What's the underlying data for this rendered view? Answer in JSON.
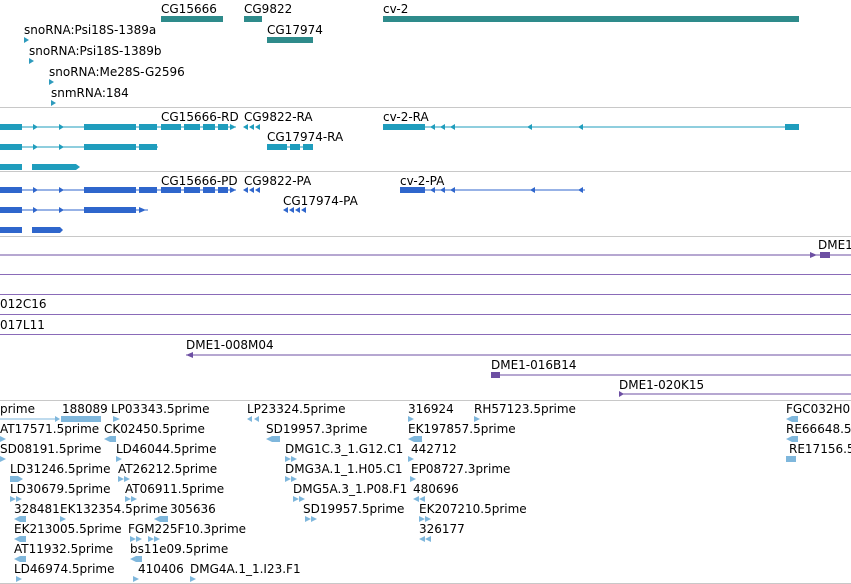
{
  "colors": {
    "gene": "#2e8b8b",
    "transcript": "#1f9dbd",
    "protein": "#2f66cc",
    "clone": "#6d4fa3",
    "est": "#7fb7dc",
    "separator": "#c8c8c8"
  },
  "tracks": {
    "genes": {
      "labels": [
        {
          "text": "CG15666",
          "name": "gene-label-cg15666"
        },
        {
          "text": "CG9822",
          "name": "gene-label-cg9822"
        },
        {
          "text": "cv-2",
          "name": "gene-label-cv-2"
        },
        {
          "text": "CG17974",
          "name": "gene-label-cg17974"
        },
        {
          "text": "snoRNA:Psi18S-1389a",
          "name": "gene-label-snorna-psi18s-1389a"
        },
        {
          "text": "snoRNA:Psi18S-1389b",
          "name": "gene-label-snorna-psi18s-1389b"
        },
        {
          "text": "snoRNA:Me28S-G2596",
          "name": "gene-label-snorna-me28s-g2596"
        },
        {
          "text": "snmRNA:184",
          "name": "gene-label-snmrna-184"
        }
      ]
    },
    "transcripts": {
      "labels": [
        {
          "text": "CG15666-RD",
          "name": "transcript-label-cg15666-rd"
        },
        {
          "text": "CG9822-RA",
          "name": "transcript-label-cg9822-ra"
        },
        {
          "text": "cv-2-RA",
          "name": "transcript-label-cv-2-ra"
        },
        {
          "text": "CG17974-RA",
          "name": "transcript-label-cg17974-ra"
        }
      ]
    },
    "proteins": {
      "labels": [
        {
          "text": "CG15666-PD",
          "name": "protein-label-cg15666-pd"
        },
        {
          "text": "CG9822-PA",
          "name": "protein-label-cg9822-pa"
        },
        {
          "text": "cv-2-PA",
          "name": "protein-label-cv-2-pa"
        },
        {
          "text": "CG17974-PA",
          "name": "protein-label-cg17974-pa"
        }
      ]
    },
    "clones": {
      "labels": [
        {
          "text": "DME1",
          "name": "clone-label-dme1"
        },
        {
          "text": "012C16",
          "name": "clone-label-012c16"
        },
        {
          "text": "017L11",
          "name": "clone-label-017l11"
        },
        {
          "text": "DME1-008M04",
          "name": "clone-label-dme1-008m04"
        },
        {
          "text": "DME1-016B14",
          "name": "clone-label-dme1-016b14"
        },
        {
          "text": "DME1-020K15",
          "name": "clone-label-dme1-020k15"
        }
      ]
    },
    "ests": {
      "labels": [
        {
          "text": "prime"
        },
        {
          "text": "188089"
        },
        {
          "text": "LP03343.5prime"
        },
        {
          "text": "LP23324.5prime"
        },
        {
          "text": "316924"
        },
        {
          "text": "RH57123.5prime"
        },
        {
          "text": "FGC032H0"
        },
        {
          "text": "AT17571.5prime"
        },
        {
          "text": "CK02450.5prime"
        },
        {
          "text": "SD19957.3prime"
        },
        {
          "text": "EK197857.5prime"
        },
        {
          "text": "RE66648.5"
        },
        {
          "text": "SD08191.5prime"
        },
        {
          "text": "LD46044.5prime"
        },
        {
          "text": "DMG1C.3_1.G12.C1"
        },
        {
          "text": "442712"
        },
        {
          "text": "RE17156.5"
        },
        {
          "text": "LD31246.5prime"
        },
        {
          "text": "AT26212.5prime"
        },
        {
          "text": "DMG3A.1_1.H05.C1"
        },
        {
          "text": "EP08727.3prime"
        },
        {
          "text": "LD30679.5prime"
        },
        {
          "text": "AT06911.5prime"
        },
        {
          "text": "DMG5A.3_1.P08.F1"
        },
        {
          "text": "480696"
        },
        {
          "text": "328481"
        },
        {
          "text": "EK132354.5prime"
        },
        {
          "text": "305636"
        },
        {
          "text": "SD19957.5prime"
        },
        {
          "text": "EK207210.5prime"
        },
        {
          "text": "EK213005.5prime"
        },
        {
          "text": "FGM225F10.3prime"
        },
        {
          "text": "326177"
        },
        {
          "text": "AT11932.5prime"
        },
        {
          "text": "bs11e09.5prime"
        },
        {
          "text": "LD46974.5prime"
        },
        {
          "text": "410406"
        },
        {
          "text": "DMG4A.1_1.I23.F1"
        }
      ]
    }
  }
}
